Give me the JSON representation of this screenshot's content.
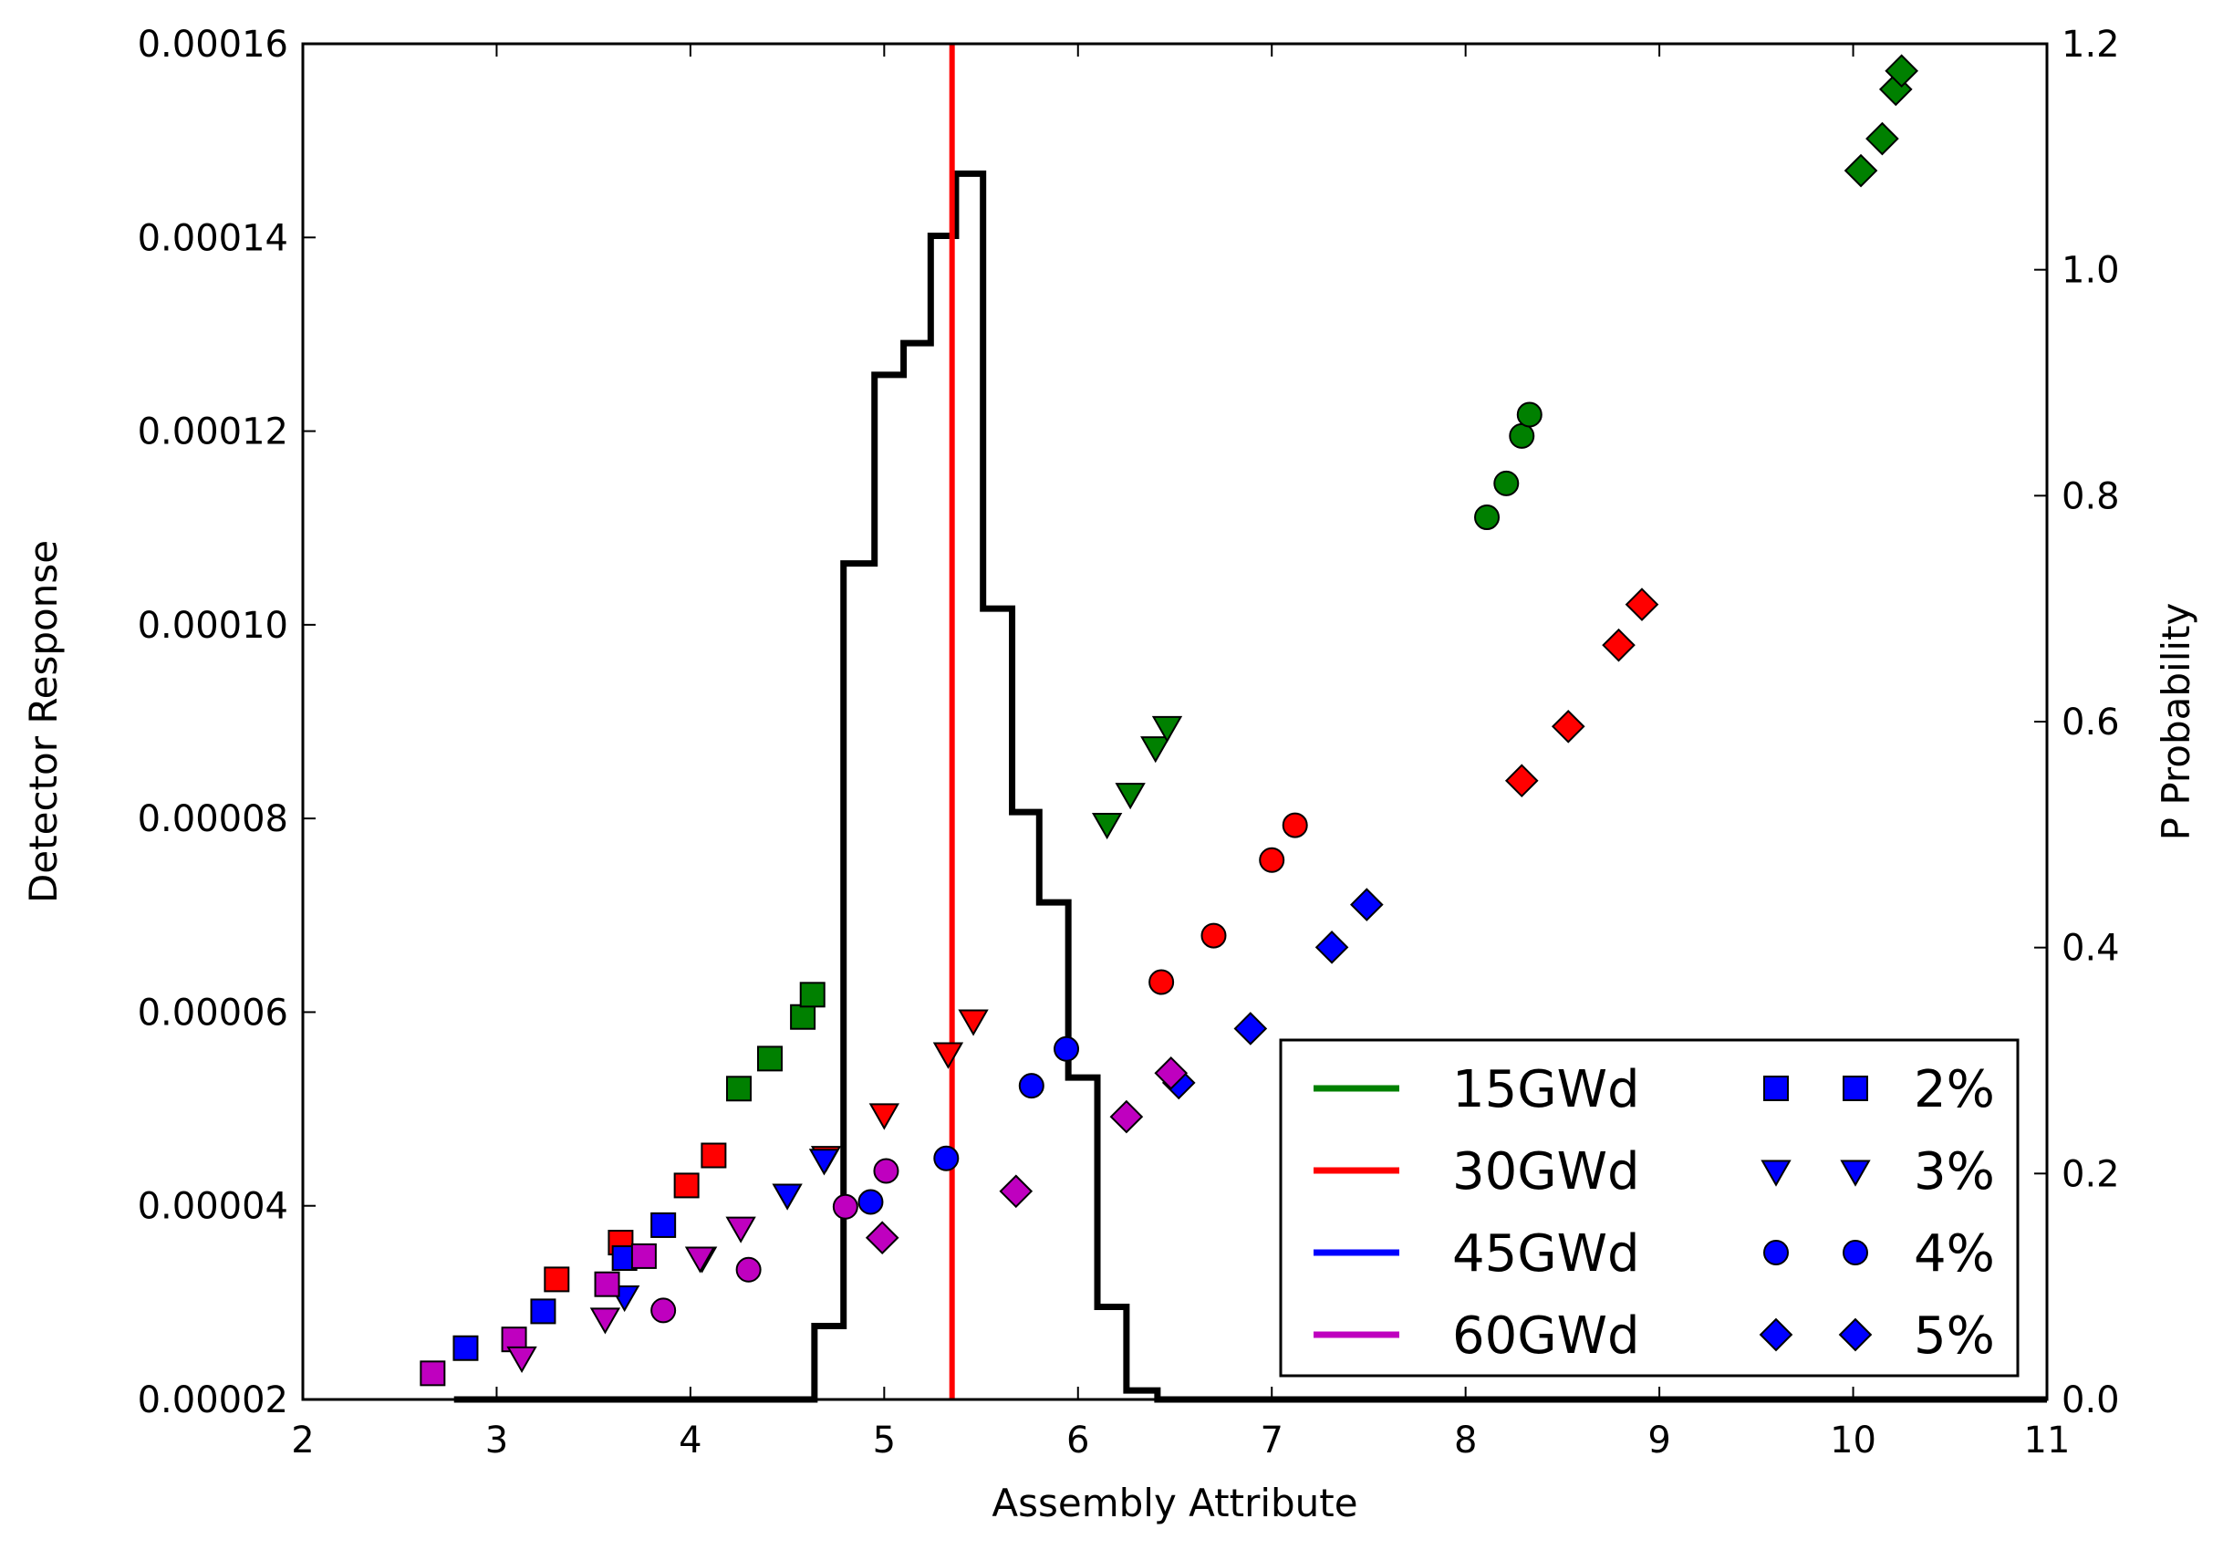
{
  "chart_data": {
    "type": "scatter",
    "title": "",
    "xlabel": "Assembly Attribute",
    "ylabel": "Detector Response",
    "y2label": "P Probability",
    "xlim": [
      2,
      11
    ],
    "ylim": [
      2e-05,
      0.00016
    ],
    "y2lim": [
      0.0,
      1.2
    ],
    "x_ticks": [
      "2",
      "3",
      "4",
      "5",
      "6",
      "7",
      "8",
      "9",
      "10",
      "11"
    ],
    "y_ticks": [
      "0.00002",
      "0.00004",
      "0.00006",
      "0.00008",
      "0.00010",
      "0.00012",
      "0.00014",
      "0.00016"
    ],
    "y2_ticks": [
      "0.0",
      "0.2",
      "0.4",
      "0.6",
      "0.8",
      "1.0",
      "1.2"
    ],
    "grid": false,
    "legend_position": "bottom-right",
    "burnup_legend": [
      {
        "name": "15GWd",
        "color": "#008000"
      },
      {
        "name": "30GWd",
        "color": "#ff0000"
      },
      {
        "name": "45GWd",
        "color": "#0000ff"
      },
      {
        "name": "60GWd",
        "color": "#bf00bf"
      }
    ],
    "enrichment_legend": [
      {
        "name": "2%",
        "marker": "square"
      },
      {
        "name": "3%",
        "marker": "triangle-down"
      },
      {
        "name": "4%",
        "marker": "circle"
      },
      {
        "name": "5%",
        "marker": "diamond"
      }
    ],
    "series": [
      {
        "burnup": "15GWd",
        "enrichment": "2%",
        "color": "#008000",
        "marker": "square",
        "points": [
          [
            4.25,
            5.21e-05
          ],
          [
            4.41,
            5.52e-05
          ],
          [
            4.58,
            5.95e-05
          ],
          [
            4.63,
            6.18e-05
          ]
        ]
      },
      {
        "burnup": "15GWd",
        "enrichment": "3%",
        "color": "#008000",
        "marker": "triangle-down",
        "points": [
          [
            6.15,
            7.95e-05
          ],
          [
            6.27,
            8.26e-05
          ],
          [
            6.4,
            8.74e-05
          ],
          [
            6.46,
            8.95e-05
          ]
        ]
      },
      {
        "burnup": "15GWd",
        "enrichment": "4%",
        "color": "#008000",
        "marker": "circle",
        "points": [
          [
            8.11,
            0.0001111
          ],
          [
            8.21,
            0.0001146
          ],
          [
            8.29,
            0.0001195
          ],
          [
            8.33,
            0.0001217
          ]
        ]
      },
      {
        "burnup": "15GWd",
        "enrichment": "5%",
        "color": "#008000",
        "marker": "diamond",
        "points": [
          [
            10.04,
            0.0001469
          ],
          [
            10.15,
            0.0001502
          ],
          [
            10.22,
            0.0001553
          ],
          [
            10.25,
            0.0001572
          ]
        ]
      },
      {
        "burnup": "30GWd",
        "enrichment": "2%",
        "color": "#ff0000",
        "marker": "square",
        "points": [
          [
            3.31,
            3.24e-05
          ],
          [
            3.64,
            3.62e-05
          ],
          [
            3.98,
            4.21e-05
          ],
          [
            4.12,
            4.52e-05
          ]
        ]
      },
      {
        "burnup": "30GWd",
        "enrichment": "3%",
        "color": "#ff0000",
        "marker": "triangle-down",
        "points": [
          [
            4.7,
            4.51e-05
          ],
          [
            5.0,
            4.95e-05
          ],
          [
            5.33,
            5.58e-05
          ],
          [
            5.46,
            5.92e-05
          ]
        ]
      },
      {
        "burnup": "30GWd",
        "enrichment": "4%",
        "color": "#ff0000",
        "marker": "circle",
        "points": [
          [
            6.43,
            6.31e-05
          ],
          [
            6.7,
            6.79e-05
          ],
          [
            7.0,
            7.57e-05
          ],
          [
            7.12,
            7.93e-05
          ]
        ]
      },
      {
        "burnup": "30GWd",
        "enrichment": "5%",
        "color": "#ff0000",
        "marker": "diamond",
        "points": [
          [
            8.29,
            8.39e-05
          ],
          [
            8.53,
            8.95e-05
          ],
          [
            8.79,
            9.79e-05
          ],
          [
            8.91,
            0.0001021
          ]
        ]
      },
      {
        "burnup": "45GWd",
        "enrichment": "2%",
        "color": "#0000ff",
        "marker": "square",
        "points": [
          [
            2.84,
            2.53e-05
          ],
          [
            3.24,
            2.91e-05
          ],
          [
            3.66,
            3.46e-05
          ],
          [
            3.86,
            3.8e-05
          ]
        ]
      },
      {
        "burnup": "45GWd",
        "enrichment": "3%",
        "color": "#0000ff",
        "marker": "triangle-down",
        "points": [
          [
            3.66,
            3.07e-05
          ],
          [
            4.06,
            3.47e-05
          ],
          [
            4.5,
            4.12e-05
          ],
          [
            4.69,
            4.48e-05
          ]
        ]
      },
      {
        "burnup": "45GWd",
        "enrichment": "4%",
        "color": "#0000ff",
        "marker": "circle",
        "points": [
          [
            4.93,
            4.04e-05
          ],
          [
            5.32,
            4.49e-05
          ],
          [
            5.76,
            5.24e-05
          ],
          [
            5.94,
            5.62e-05
          ]
        ]
      },
      {
        "burnup": "45GWd",
        "enrichment": "5%",
        "color": "#0000ff",
        "marker": "diamond",
        "points": [
          [
            6.52,
            5.27e-05
          ],
          [
            6.89,
            5.83e-05
          ],
          [
            7.31,
            6.67e-05
          ],
          [
            7.49,
            7.11e-05
          ]
        ]
      },
      {
        "burnup": "60GWd",
        "enrichment": "2%",
        "color": "#bf00bf",
        "marker": "square",
        "points": [
          [
            2.67,
            2.27e-05
          ],
          [
            3.09,
            2.62e-05
          ],
          [
            3.57,
            3.19e-05
          ],
          [
            3.76,
            3.48e-05
          ]
        ]
      },
      {
        "burnup": "60GWd",
        "enrichment": "3%",
        "color": "#bf00bf",
        "marker": "triangle-down",
        "points": [
          [
            3.13,
            2.44e-05
          ],
          [
            3.56,
            2.84e-05
          ],
          [
            4.05,
            3.47e-05
          ],
          [
            4.26,
            3.78e-05
          ]
        ]
      },
      {
        "burnup": "60GWd",
        "enrichment": "4%",
        "color": "#bf00bf",
        "marker": "circle",
        "points": [
          [
            3.86,
            2.92e-05
          ],
          [
            4.3,
            3.34e-05
          ],
          [
            4.8,
            3.99e-05
          ],
          [
            5.01,
            4.36e-05
          ]
        ]
      },
      {
        "burnup": "60GWd",
        "enrichment": "5%",
        "color": "#bf00bf",
        "marker": "diamond",
        "points": [
          [
            4.99,
            3.67e-05
          ],
          [
            5.68,
            4.15e-05
          ],
          [
            6.25,
            4.92e-05
          ],
          [
            6.48,
            5.37e-05
          ]
        ]
      }
    ],
    "histogram": {
      "axis": "right",
      "color": "#000000",
      "bin_edges": [
        2.78,
        4.64,
        4.79,
        4.95,
        5.1,
        5.24,
        5.37,
        5.51,
        5.66,
        5.8,
        5.95,
        6.1,
        6.25,
        6.41,
        11.0
      ],
      "values": [
        0.0,
        0.065,
        0.74,
        0.907,
        0.935,
        1.03,
        1.085,
        0.7,
        0.52,
        0.44,
        0.285,
        0.082,
        0.008,
        0.0
      ]
    },
    "vertical_line": {
      "x": 5.35,
      "color": "#ff0000"
    }
  }
}
